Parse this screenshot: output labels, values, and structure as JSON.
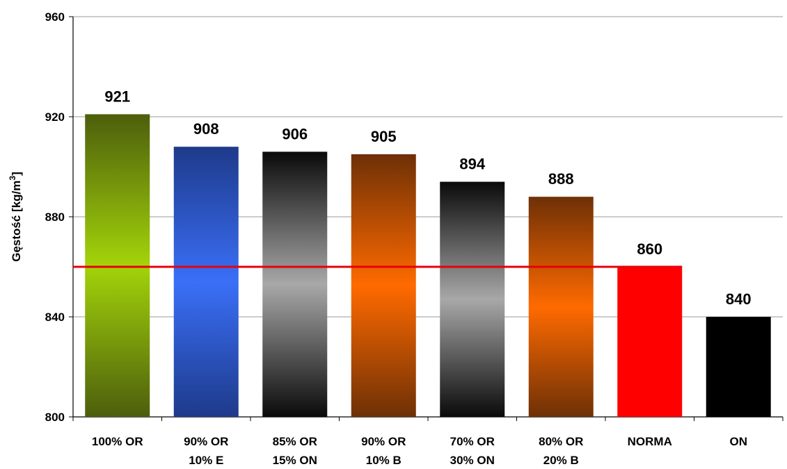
{
  "chart_data": {
    "type": "bar",
    "title": "",
    "xlabel": "",
    "ylabel": "Gęstość [kg/m3]",
    "ylabel_parts": {
      "main": "Gęstość [kg/m",
      "sup": "3",
      "end": "]"
    },
    "ylim": [
      800,
      960
    ],
    "yticks": [
      800,
      840,
      880,
      920,
      960
    ],
    "grid": true,
    "legend": "none",
    "categories": [
      [
        "100% OR"
      ],
      [
        "90% OR",
        "10% E"
      ],
      [
        "85% OR",
        "15% ON"
      ],
      [
        "90% OR",
        "10% B"
      ],
      [
        "70% OR",
        "30% ON"
      ],
      [
        "80% OR",
        "20% B"
      ],
      [
        "NORMA"
      ],
      [
        "ON"
      ]
    ],
    "values": [
      921,
      908,
      906,
      905,
      894,
      888,
      860,
      840
    ],
    "bar_styles": [
      {
        "type": "gradient",
        "colors": [
          "#4d5e0c",
          "#a3d40a",
          "#4d5e0c"
        ]
      },
      {
        "type": "gradient",
        "colors": [
          "#1e3a8a",
          "#3a6ff7",
          "#1e3a8a"
        ]
      },
      {
        "type": "gradient",
        "colors": [
          "#0a0a0a",
          "#a8a8a8",
          "#0a0a0a"
        ]
      },
      {
        "type": "gradient",
        "colors": [
          "#6e3006",
          "#ff6a00",
          "#6e3006"
        ]
      },
      {
        "type": "gradient",
        "colors": [
          "#0a0a0a",
          "#a8a8a8",
          "#0a0a0a"
        ]
      },
      {
        "type": "gradient",
        "colors": [
          "#6e3006",
          "#ff6a00",
          "#6e3006"
        ]
      },
      {
        "type": "solid",
        "colors": [
          "#ff0000"
        ]
      },
      {
        "type": "solid",
        "colors": [
          "#000000"
        ]
      }
    ],
    "reference_line": {
      "value": 860,
      "color": "#e8000b"
    }
  }
}
